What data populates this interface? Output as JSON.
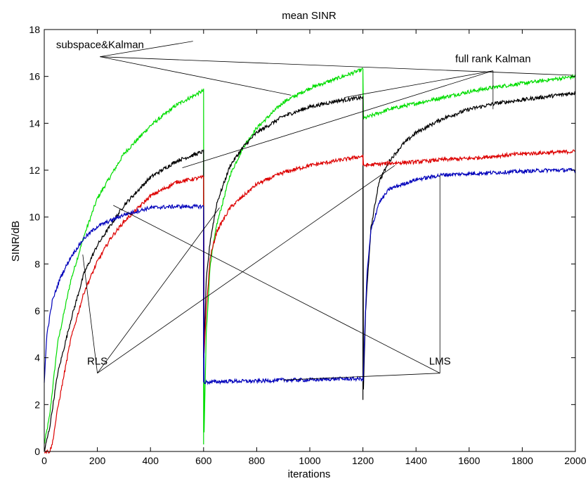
{
  "chart_data": {
    "type": "line",
    "title": "mean SINR",
    "xlabel": "iterations",
    "ylabel": "SINR/dB",
    "xlim": [
      0,
      2000
    ],
    "ylim": [
      0,
      18
    ],
    "xticks": [
      0,
      200,
      400,
      600,
      800,
      1000,
      1200,
      1400,
      1600,
      1800,
      2000
    ],
    "yticks": [
      0,
      2,
      4,
      6,
      8,
      10,
      12,
      14,
      16,
      18
    ],
    "grid": false,
    "segments": [
      [
        0,
        600
      ],
      [
        600,
        1200
      ],
      [
        1200,
        2000
      ]
    ],
    "series": [
      {
        "color": "#00dd00",
        "points": [
          [
            0,
            0.3
          ],
          [
            20,
            1.5
          ],
          [
            50,
            4.6
          ],
          [
            100,
            7.3
          ],
          [
            150,
            9.2
          ],
          [
            200,
            10.8
          ],
          [
            300,
            12.7
          ],
          [
            400,
            13.9
          ],
          [
            500,
            14.8
          ],
          [
            600,
            15.4
          ],
          [
            601,
            0.3
          ],
          [
            610,
            5.0
          ],
          [
            625,
            8.0
          ],
          [
            650,
            9.7
          ],
          [
            700,
            11.8
          ],
          [
            750,
            13.0
          ],
          [
            800,
            13.8
          ],
          [
            900,
            14.9
          ],
          [
            1000,
            15.5
          ],
          [
            1100,
            15.9
          ],
          [
            1200,
            16.3
          ],
          [
            1201,
            14.2
          ],
          [
            1300,
            14.6
          ],
          [
            1400,
            14.85
          ],
          [
            1500,
            15.1
          ],
          [
            1600,
            15.35
          ],
          [
            1700,
            15.55
          ],
          [
            1800,
            15.7
          ],
          [
            1900,
            15.85
          ],
          [
            2000,
            16.0
          ]
        ]
      },
      {
        "color": "#000000",
        "points": [
          [
            0,
            0.0
          ],
          [
            20,
            1.0
          ],
          [
            50,
            3.3
          ],
          [
            100,
            5.6
          ],
          [
            150,
            7.6
          ],
          [
            200,
            8.8
          ],
          [
            300,
            10.5
          ],
          [
            400,
            11.7
          ],
          [
            500,
            12.4
          ],
          [
            600,
            12.8
          ],
          [
            601,
            4.0
          ],
          [
            610,
            7.3
          ],
          [
            625,
            9.0
          ],
          [
            650,
            10.6
          ],
          [
            700,
            12.2
          ],
          [
            750,
            13.0
          ],
          [
            800,
            13.6
          ],
          [
            900,
            14.3
          ],
          [
            1000,
            14.7
          ],
          [
            1100,
            14.95
          ],
          [
            1200,
            15.1
          ],
          [
            1201,
            2.2
          ],
          [
            1210,
            6.0
          ],
          [
            1230,
            9.5
          ],
          [
            1260,
            11.5
          ],
          [
            1300,
            12.4
          ],
          [
            1350,
            13.1
          ],
          [
            1400,
            13.6
          ],
          [
            1500,
            14.2
          ],
          [
            1600,
            14.6
          ],
          [
            1700,
            14.85
          ],
          [
            1800,
            15.0
          ],
          [
            1900,
            15.15
          ],
          [
            2000,
            15.3
          ]
        ]
      },
      {
        "color": "#dd0000",
        "points": [
          [
            0,
            0.0
          ],
          [
            20,
            0.0
          ],
          [
            30,
            0.3
          ],
          [
            50,
            1.8
          ],
          [
            100,
            4.8
          ],
          [
            150,
            6.8
          ],
          [
            200,
            8.1
          ],
          [
            250,
            9.1
          ],
          [
            300,
            9.8
          ],
          [
            400,
            10.9
          ],
          [
            500,
            11.5
          ],
          [
            600,
            11.7
          ],
          [
            601,
            4.0
          ],
          [
            610,
            6.0
          ],
          [
            625,
            8.3
          ],
          [
            650,
            9.4
          ],
          [
            700,
            10.4
          ],
          [
            800,
            11.4
          ],
          [
            900,
            11.9
          ],
          [
            1000,
            12.2
          ],
          [
            1100,
            12.4
          ],
          [
            1200,
            12.6
          ],
          [
            1201,
            12.2
          ],
          [
            1300,
            12.3
          ],
          [
            1400,
            12.35
          ],
          [
            1500,
            12.45
          ],
          [
            1600,
            12.5
          ],
          [
            1700,
            12.6
          ],
          [
            1800,
            12.7
          ],
          [
            1900,
            12.75
          ],
          [
            2000,
            12.8
          ]
        ]
      },
      {
        "color": "#0000bb",
        "points": [
          [
            0,
            3.0
          ],
          [
            10,
            5.0
          ],
          [
            30,
            6.4
          ],
          [
            60,
            7.4
          ],
          [
            100,
            8.3
          ],
          [
            150,
            9.1
          ],
          [
            200,
            9.6
          ],
          [
            300,
            10.1
          ],
          [
            400,
            10.4
          ],
          [
            500,
            10.45
          ],
          [
            600,
            10.45
          ],
          [
            601,
            2.95
          ],
          [
            700,
            3.0
          ],
          [
            800,
            3.0
          ],
          [
            900,
            3.05
          ],
          [
            1000,
            3.05
          ],
          [
            1100,
            3.1
          ],
          [
            1200,
            3.1
          ],
          [
            1201,
            3.0
          ],
          [
            1205,
            4.5
          ],
          [
            1215,
            7.5
          ],
          [
            1230,
            9.4
          ],
          [
            1260,
            10.6
          ],
          [
            1300,
            11.2
          ],
          [
            1400,
            11.6
          ],
          [
            1500,
            11.8
          ],
          [
            1600,
            11.85
          ],
          [
            1700,
            11.9
          ],
          [
            1800,
            11.95
          ],
          [
            1900,
            12.0
          ],
          [
            2000,
            12.0
          ]
        ]
      }
    ],
    "annotations": [
      {
        "text": "subspace&Kalman",
        "x": 210,
        "y": 17.2,
        "arrows": [
          [
            560,
            17.5
          ],
          [
            930,
            15.2
          ],
          [
            1990,
            16.05
          ]
        ]
      },
      {
        "text": "full rank Kalman",
        "x": 1690,
        "y": 16.6,
        "arrows": [
          [
            520,
            12.1
          ],
          [
            1130,
            15.1
          ],
          [
            1690,
            14.6
          ]
        ]
      },
      {
        "text": "RLS",
        "x": 200,
        "y": 3.7,
        "arrows": [
          [
            145,
            8.4
          ],
          [
            660,
            10.4
          ],
          [
            1320,
            12.2
          ]
        ]
      },
      {
        "text": "LMS",
        "x": 1490,
        "y": 3.7,
        "arrows": [
          [
            260,
            10.5
          ],
          [
            900,
            3.05
          ],
          [
            1490,
            11.8
          ]
        ]
      }
    ]
  }
}
